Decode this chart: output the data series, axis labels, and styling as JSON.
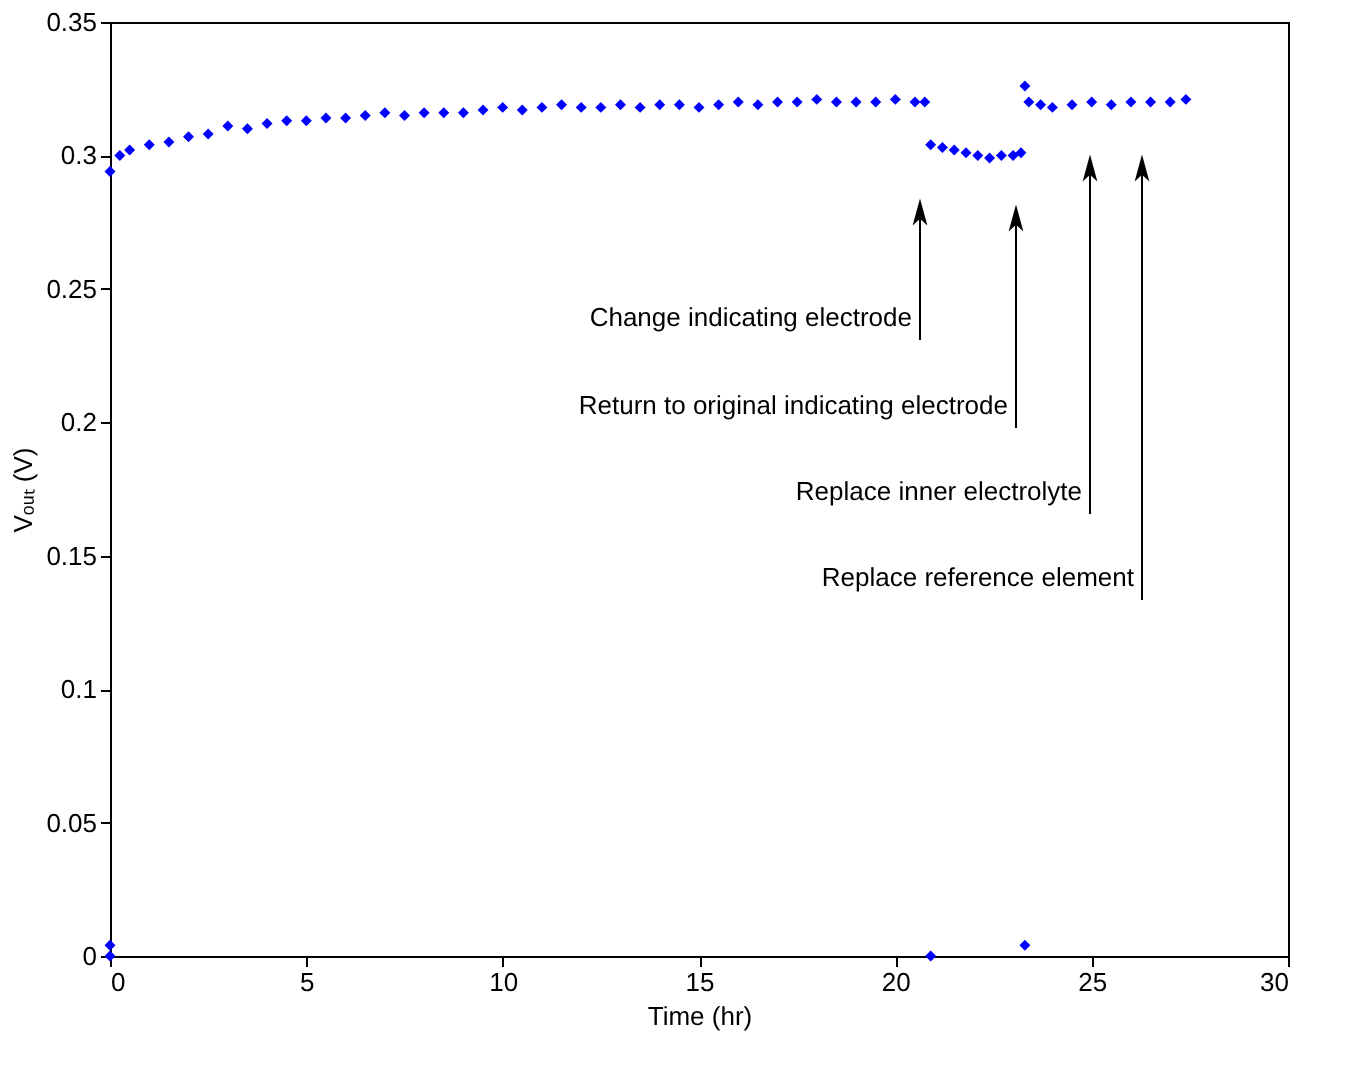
{
  "chart_data": {
    "type": "scatter",
    "xlabel": "Time (hr)",
    "ylabel": "Vₒᵤₜ (V)",
    "marker": "diamond",
    "grid": false,
    "xlim": [
      0,
      30
    ],
    "xticks": [
      0,
      5,
      10,
      15,
      20,
      25,
      30
    ],
    "ylim": [
      0,
      0.35
    ],
    "yticks": [
      0,
      0.05,
      0.1,
      0.15,
      0.2,
      0.25,
      0.3,
      0.35
    ],
    "series": [
      {
        "color": "#0000ff",
        "x": [
          0,
          0.25,
          0.5,
          1,
          1.5,
          2,
          2.5,
          3,
          3.5,
          4,
          4.5,
          5,
          5.5,
          6,
          6.5,
          7,
          7.5,
          8,
          8.5,
          9,
          9.5,
          10,
          10.5,
          11,
          11.5,
          12,
          12.5,
          13,
          13.5,
          14,
          14.5,
          15,
          15.5,
          16,
          16.5,
          17,
          17.5,
          18,
          18.5,
          19,
          19.5,
          20,
          20.5,
          20.75,
          20.9,
          21.2,
          21.5,
          21.8,
          22.1,
          22.4,
          22.7,
          23.0,
          23.2,
          23.3,
          23.4,
          23.7,
          24,
          24.5,
          25,
          25.5,
          26,
          26.5,
          27,
          27.4,
          0,
          0,
          20.9,
          23.3
        ],
        "values": [
          0.294,
          0.3,
          0.302,
          0.304,
          0.305,
          0.307,
          0.308,
          0.311,
          0.31,
          0.312,
          0.313,
          0.313,
          0.314,
          0.314,
          0.315,
          0.316,
          0.315,
          0.316,
          0.316,
          0.316,
          0.317,
          0.318,
          0.317,
          0.318,
          0.319,
          0.318,
          0.318,
          0.319,
          0.318,
          0.319,
          0.319,
          0.318,
          0.319,
          0.32,
          0.319,
          0.32,
          0.32,
          0.321,
          0.32,
          0.32,
          0.32,
          0.321,
          0.32,
          0.32,
          0.304,
          0.303,
          0.302,
          0.301,
          0.3,
          0.299,
          0.3,
          0.3,
          0.301,
          0.326,
          0.32,
          0.319,
          0.318,
          0.319,
          0.32,
          0.319,
          0.32,
          0.32,
          0.32,
          0.321,
          0.004,
          0,
          0,
          0.004
        ]
      }
    ],
    "annotations": [
      "Change indicating electrode",
      "Return to original indicating electrode",
      "Replace inner electrolyte",
      "Replace reference element"
    ]
  }
}
